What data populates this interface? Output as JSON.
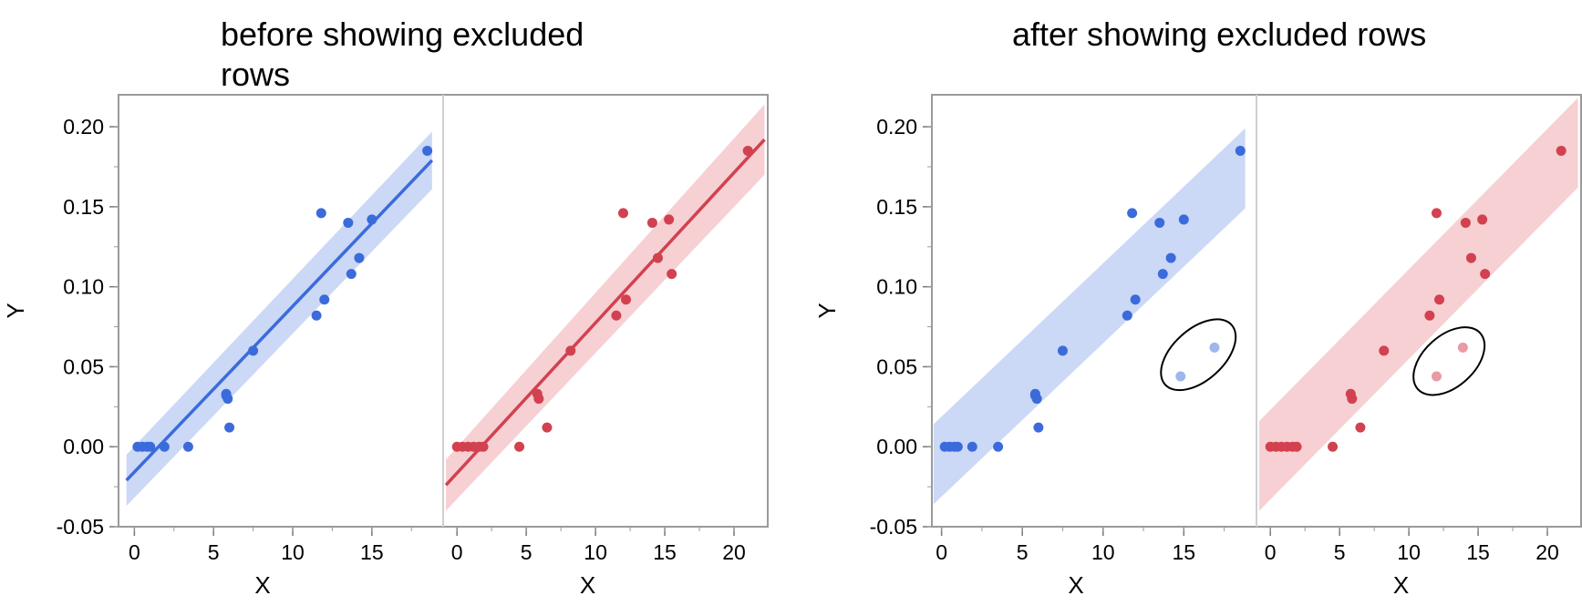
{
  "chart_data": [
    {
      "type": "scatter",
      "title": "before showing excluded rows",
      "xlabel": "X",
      "ylabel": "Y",
      "ylim": [
        -0.05,
        0.22
      ],
      "yticks": [
        "0.20",
        "0.15",
        "0.10",
        "0.05",
        "0.00",
        "-0.05"
      ],
      "grid": false,
      "panels": [
        {
          "color": "#3B6BDB",
          "band_color": "#C8D6F5",
          "xlim": [
            -1,
            19.5
          ],
          "xticks": [
            "0",
            "5",
            "10",
            "15"
          ],
          "fit": {
            "x": [
              -0.5,
              18.8
            ],
            "y": [
              -0.021,
              0.179
            ],
            "band_halfwidth": [
              0.016,
              0.018
            ]
          },
          "points": {
            "x": [
              0.2,
              0.5,
              0.8,
              1.0,
              1.9,
              3.4,
              5.8,
              5.8,
              5.9,
              6.0,
              7.5,
              11.5,
              11.8,
              12.0,
              13.5,
              13.7,
              14.2,
              15.0,
              18.5
            ],
            "y": [
              0.0,
              0.0,
              0.0,
              0.0,
              0.0,
              0.0,
              0.033,
              0.032,
              0.03,
              0.012,
              0.06,
              0.082,
              0.146,
              0.092,
              0.14,
              0.108,
              0.118,
              0.142,
              0.185
            ]
          },
          "excluded_points": {
            "x": [],
            "y": []
          }
        },
        {
          "color": "#D2414F",
          "band_color": "#F6CDD1",
          "xlim": [
            -1,
            22.5
          ],
          "xticks": [
            "0",
            "5",
            "10",
            "15",
            "20"
          ],
          "fit": {
            "x": [
              -0.8,
              22.2
            ],
            "y": [
              -0.024,
              0.192
            ],
            "band_halfwidth": [
              0.016,
              0.022
            ]
          },
          "points": {
            "x": [
              0.0,
              0.4,
              0.8,
              1.2,
              1.6,
              1.9,
              4.5,
              5.8,
              5.9,
              6.5,
              8.2,
              11.5,
              12.0,
              12.2,
              14.1,
              14.5,
              15.3,
              15.5,
              21.0
            ],
            "y": [
              0.0,
              0.0,
              0.0,
              0.0,
              0.0,
              0.0,
              0.0,
              0.033,
              0.03,
              0.012,
              0.06,
              0.082,
              0.146,
              0.092,
              0.14,
              0.118,
              0.142,
              0.108,
              0.185
            ]
          },
          "excluded_points": {
            "x": [],
            "y": []
          }
        }
      ]
    },
    {
      "type": "scatter",
      "title": "after showing excluded rows",
      "xlabel": "X",
      "ylabel": "Y",
      "ylim": [
        -0.05,
        0.22
      ],
      "yticks": [
        "0.20",
        "0.15",
        "0.10",
        "0.05",
        "0.00",
        "-0.05"
      ],
      "grid": false,
      "panels": [
        {
          "color": "#3B6BDB",
          "band_color": "#C8D6F5",
          "xlim": [
            -0.6,
            19.5
          ],
          "xticks": [
            "0",
            "5",
            "10",
            "15"
          ],
          "band": {
            "x": [
              -0.5,
              18.8
            ],
            "y": [
              -0.011,
              0.174
            ],
            "band_halfwidth": [
              0.025,
              0.025
            ]
          },
          "points": {
            "x": [
              0.2,
              0.5,
              0.8,
              1.0,
              1.9,
              3.5,
              5.8,
              5.8,
              5.9,
              6.0,
              7.5,
              11.5,
              11.8,
              12.0,
              13.5,
              13.7,
              14.2,
              15.0,
              18.5
            ],
            "y": [
              0.0,
              0.0,
              0.0,
              0.0,
              0.0,
              0.0,
              0.033,
              0.032,
              0.03,
              0.012,
              0.06,
              0.082,
              0.146,
              0.092,
              0.14,
              0.108,
              0.118,
              0.142,
              0.185
            ]
          },
          "excluded_points": {
            "x": [
              14.8,
              16.9
            ],
            "y": [
              0.044,
              0.062
            ]
          },
          "excluded_color": "#9FB6EC",
          "ellipse": {
            "cx": 15.9,
            "cy": 0.0575,
            "rx_px": 28,
            "ry_px": 49,
            "rotate": 48
          }
        },
        {
          "color": "#D2414F",
          "band_color": "#F6CDD1",
          "xlim": [
            -1,
            22.5
          ],
          "xticks": [
            "0",
            "5",
            "10",
            "15",
            "20"
          ],
          "band": {
            "x": [
              -0.8,
              22.2
            ],
            "y": [
              -0.012,
              0.19
            ],
            "band_halfwidth": [
              0.028,
              0.028
            ]
          },
          "points": {
            "x": [
              0.0,
              0.4,
              0.8,
              1.2,
              1.6,
              1.9,
              4.5,
              5.8,
              5.9,
              6.5,
              8.2,
              11.5,
              12.0,
              12.2,
              14.1,
              14.5,
              15.3,
              15.5,
              21.0
            ],
            "y": [
              0.0,
              0.0,
              0.0,
              0.0,
              0.0,
              0.0,
              0.0,
              0.033,
              0.03,
              0.012,
              0.06,
              0.082,
              0.146,
              0.092,
              0.14,
              0.118,
              0.142,
              0.108,
              0.185
            ]
          },
          "excluded_points": {
            "x": [
              12.0,
              13.9
            ],
            "y": [
              0.044,
              0.062
            ]
          },
          "excluded_color": "#E89BA3",
          "ellipse": {
            "cx": 12.9,
            "cy": 0.0535,
            "rx_px": 28,
            "ry_px": 46,
            "rotate": 48
          }
        }
      ]
    }
  ]
}
